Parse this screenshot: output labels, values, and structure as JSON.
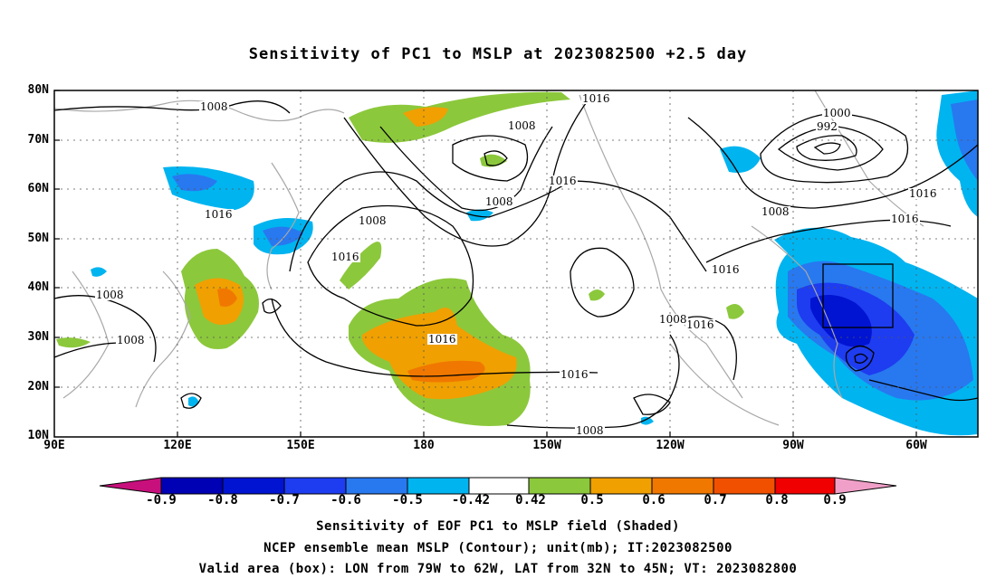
{
  "title": "Sensitivity of PC1 to MSLP at 2023082500 +2.5 day",
  "map": {
    "lat_labels": [
      "80N",
      "70N",
      "60N",
      "50N",
      "40N",
      "30N",
      "20N",
      "10N"
    ],
    "lon_labels": [
      "90E",
      "120E",
      "150E",
      "180",
      "150W",
      "120W",
      "90W",
      "60W"
    ],
    "valid_box": {
      "lon_from": "79W",
      "lon_to": "62W",
      "lat_from": "32N",
      "lat_to": "45N"
    },
    "contour_labels": [
      "1008",
      "1016",
      "1008",
      "1000",
      "992",
      "1008",
      "1016",
      "1016",
      "1008",
      "1016",
      "1016",
      "1016",
      "1008",
      "1008",
      "1016",
      "1016",
      "1008",
      "1016",
      "1008",
      "1016",
      "1008"
    ]
  },
  "colorbar": {
    "labels": [
      "-0.9",
      "-0.8",
      "-0.7",
      "-0.6",
      "-0.5",
      "-0.42",
      "0.42",
      "0.5",
      "0.6",
      "0.7",
      "0.8",
      "0.9"
    ],
    "colors": {
      "neg_end": "#c8107c",
      "b1": "#0000b4",
      "b2": "#0014d2",
      "b3": "#1e3cf0",
      "b4": "#2878f0",
      "b5": "#00b4f0",
      "white": "#ffffff",
      "g": "#8cc83c",
      "o1": "#f0a000",
      "o2": "#f07800",
      "o3": "#f05000",
      "o4": "#f00000",
      "pos_end": "#f0a0c8"
    }
  },
  "captions": [
    "Sensitivity of EOF PC1 to MSLP field (Shaded)",
    "NCEP ensemble mean MSLP (Contour); unit(mb); IT:2023082500",
    "Valid area (box): LON from 79W to 62W, LAT from 32N to 45N; VT: 2023082800"
  ]
}
